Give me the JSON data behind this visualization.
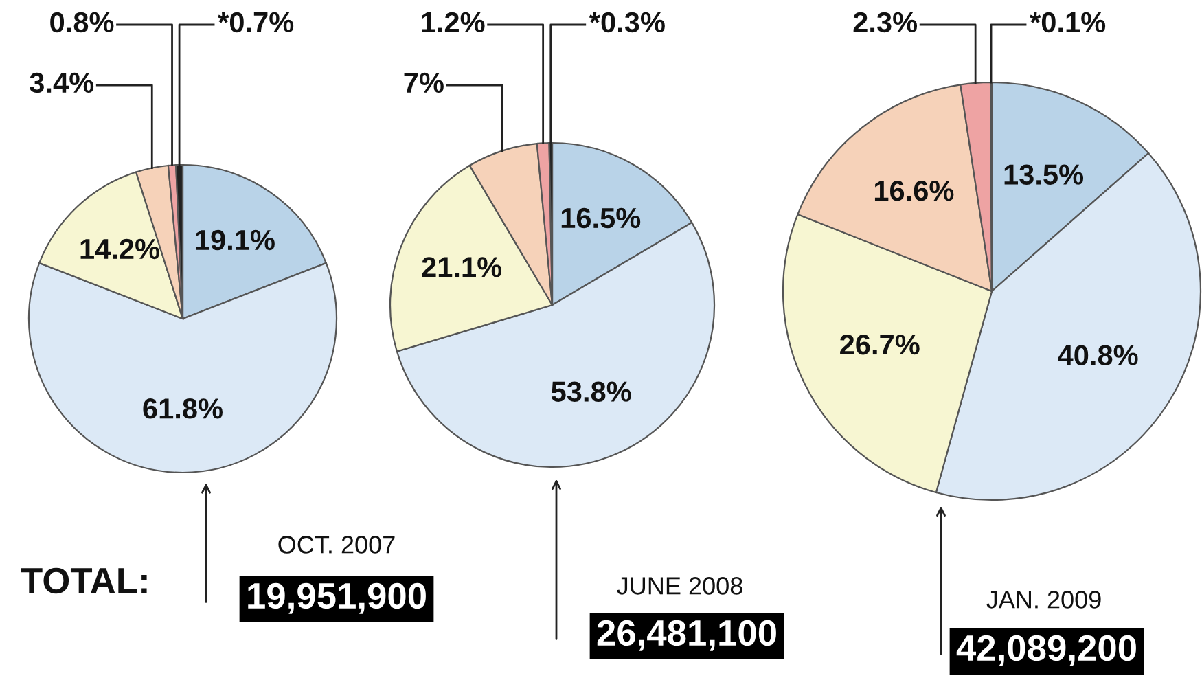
{
  "chart_data": [
    {
      "type": "pie",
      "title": "OCT. 2007",
      "subtitle": "19,951,900",
      "annotations": [
        "TOTAL:"
      ],
      "categories": [
        null,
        null,
        null,
        null,
        null,
        null
      ],
      "values": [
        19.1,
        61.8,
        14.2,
        3.4,
        0.8,
        0.7
      ],
      "value_labels": [
        "19.1%",
        "61.8%",
        "14.2%",
        "3.4%",
        "0.8%",
        "*0.7%"
      ],
      "colors": [
        "#b9d3e8",
        "#dce9f6",
        "#f7f6d2",
        "#f6d2b9",
        "#eea3a3",
        "#222222"
      ]
    },
    {
      "type": "pie",
      "title": "JUNE 2008",
      "subtitle": "26,481,100",
      "categories": [
        null,
        null,
        null,
        null,
        null,
        null
      ],
      "values": [
        16.5,
        53.8,
        21.1,
        7,
        1.2,
        0.3
      ],
      "value_labels": [
        "16.5%",
        "53.8%",
        "21.1%",
        "7%",
        "1.2%",
        "*0.3%"
      ],
      "colors": [
        "#b9d3e8",
        "#dce9f6",
        "#f7f6d2",
        "#f6d2b9",
        "#eea3a3",
        "#222222"
      ]
    },
    {
      "type": "pie",
      "title": "JAN. 2009",
      "subtitle": "42,089,200",
      "categories": [
        null,
        null,
        null,
        null,
        null,
        null
      ],
      "values": [
        13.5,
        40.8,
        26.7,
        16.6,
        2.3,
        0.1
      ],
      "value_labels": [
        "13.5%",
        "40.8%",
        "26.7%",
        "16.6%",
        "2.3%",
        "*0.1%"
      ],
      "colors": [
        "#b9d3e8",
        "#dce9f6",
        "#f7f6d2",
        "#f6d2b9",
        "#eea3a3",
        "#222222"
      ]
    }
  ]
}
